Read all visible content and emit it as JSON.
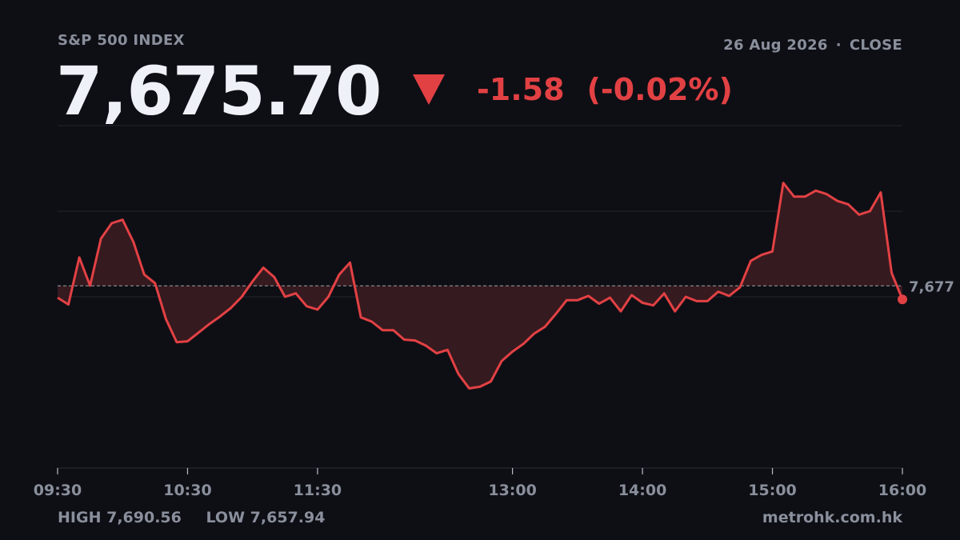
{
  "header": {
    "index_name": "S&P 500 INDEX",
    "date": "26 Aug 2026",
    "separator": "·",
    "status": "CLOSE",
    "price": "7,675.70",
    "change": "-1.58",
    "change_pct": "(-0.02%)",
    "direction_icon": "down-triangle-icon"
  },
  "footer": {
    "high_label": "HIGH",
    "high_value": "7,690.56",
    "low_label": "LOW",
    "low_value": "7,657.94",
    "source": "metrohk.com.hk"
  },
  "colors": {
    "background": "#0e0f15",
    "line": "#e24144",
    "fill": "#351a1f",
    "price_text": "#eef1f8",
    "muted_text": "#8a8f9c"
  },
  "chart_data": {
    "type": "area",
    "x_unit": "time",
    "x_ticks": [
      "09:30",
      "10:30",
      "11:30",
      "13:00",
      "14:00",
      "15:00",
      "16:00"
    ],
    "x_tick_minutes": [
      570,
      630,
      690,
      780,
      840,
      900,
      960
    ],
    "xlim": [
      570,
      960
    ],
    "ylim": [
      7656,
      7696
    ],
    "grid_values": [
      7676,
      7686
    ],
    "reference_line": {
      "value": 7677.28,
      "label": "7,677"
    },
    "last_point_marker": true,
    "legend": "none",
    "x": [
      570,
      575,
      580,
      585,
      590,
      595,
      600,
      605,
      610,
      615,
      620,
      625,
      630,
      635,
      640,
      645,
      650,
      655,
      660,
      665,
      670,
      675,
      680,
      685,
      690,
      695,
      700,
      705,
      710,
      715,
      720,
      725,
      730,
      735,
      740,
      745,
      750,
      755,
      760,
      765,
      770,
      775,
      780,
      785,
      790,
      795,
      800,
      805,
      810,
      815,
      820,
      825,
      830,
      835,
      840,
      845,
      850,
      855,
      860,
      865,
      870,
      875,
      880,
      885,
      890,
      895,
      900,
      905,
      910,
      915,
      920,
      925,
      930,
      935,
      940,
      945,
      950,
      955,
      960
    ],
    "values": [
      7675.9,
      7675.1,
      7680.6,
      7677.3,
      7682.8,
      7684.6,
      7685.0,
      7682.4,
      7678.6,
      7677.6,
      7673.4,
      7670.7,
      7670.8,
      7671.8,
      7672.8,
      7673.7,
      7674.7,
      7676.0,
      7677.8,
      7679.4,
      7678.3,
      7676.0,
      7676.4,
      7674.9,
      7674.5,
      7676.0,
      7678.6,
      7680.0,
      7673.6,
      7673.1,
      7672.1,
      7672.1,
      7671.0,
      7670.9,
      7670.3,
      7669.4,
      7669.8,
      7667.0,
      7665.3,
      7665.5,
      7666.1,
      7668.5,
      7669.6,
      7670.5,
      7671.7,
      7672.5,
      7674.0,
      7675.6,
      7675.6,
      7676.1,
      7675.2,
      7675.9,
      7674.3,
      7676.2,
      7675.3,
      7675.0,
      7676.4,
      7674.3,
      7676.0,
      7675.5,
      7675.5,
      7676.6,
      7676.1,
      7677.1,
      7680.2,
      7680.9,
      7681.3,
      7689.3,
      7687.7,
      7687.7,
      7688.4,
      7688.0,
      7687.2,
      7686.8,
      7685.6,
      7686.0,
      7688.2,
      7678.8,
      7675.7
    ]
  }
}
